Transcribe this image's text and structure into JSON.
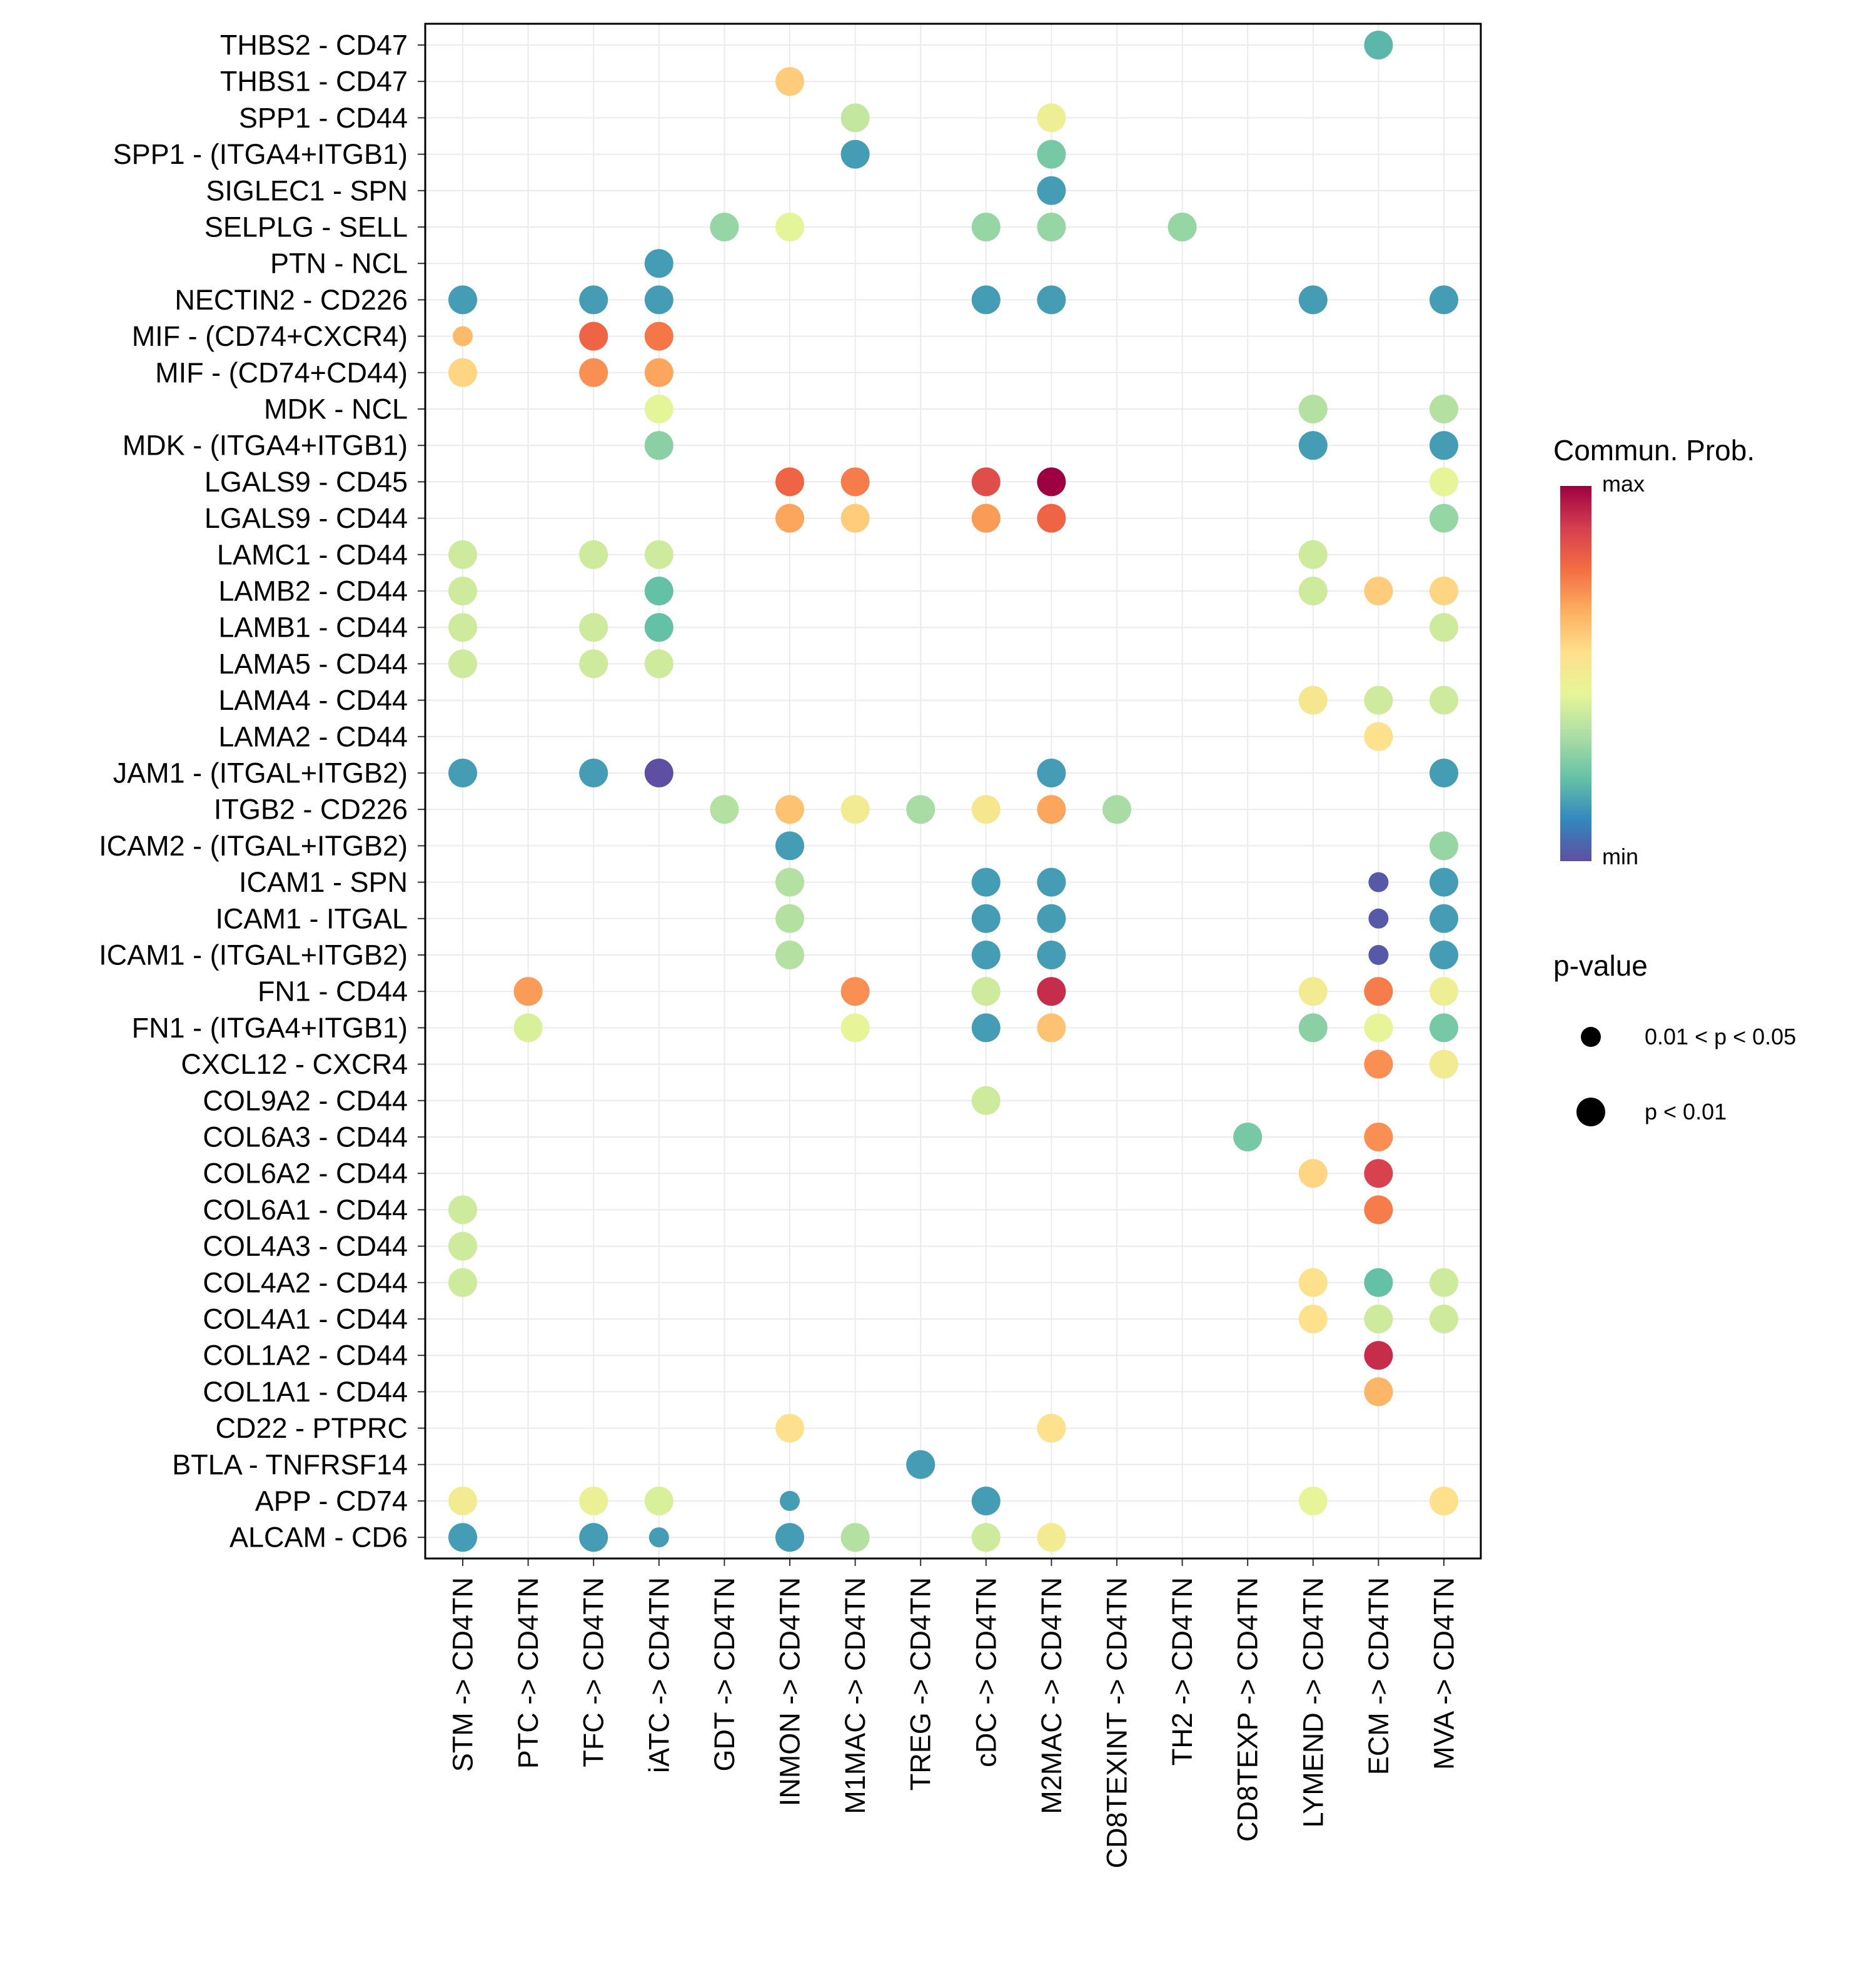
{
  "chart_data": {
    "type": "scatter",
    "subtype": "bubble-dotplot",
    "title": "",
    "xlabel": "",
    "ylabel": "",
    "grid": true,
    "legend_position": "right",
    "x_categories": [
      "STM -> CD4TN",
      "PTC -> CD4TN",
      "TFC -> CD4TN",
      "iATC -> CD4TN",
      "GDT -> CD4TN",
      "INMON -> CD4TN",
      "M1MAC -> CD4TN",
      "TREG -> CD4TN",
      "cDC -> CD4TN",
      "M2MAC -> CD4TN",
      "CD8TEXINT -> CD4TN",
      "TH2 -> CD4TN",
      "CD8TEXP -> CD4TN",
      "LYMEND -> CD4TN",
      "ECM -> CD4TN",
      "MVA -> CD4TN"
    ],
    "y_categories": [
      "THBS2 - CD47",
      "THBS1 - CD47",
      "SPP1 - CD44",
      "SPP1 - (ITGA4+ITGB1)",
      "SIGLEC1 - SPN",
      "SELPLG - SELL",
      "PTN - NCL",
      "NECTIN2 - CD226",
      "MIF - (CD74+CXCR4)",
      "MIF - (CD74+CD44)",
      "MDK - NCL",
      "MDK - (ITGA4+ITGB1)",
      "LGALS9 - CD45",
      "LGALS9 - CD44",
      "LAMC1 - CD44",
      "LAMB2 - CD44",
      "LAMB1 - CD44",
      "LAMA5 - CD44",
      "LAMA4 - CD44",
      "LAMA2 - CD44",
      "JAM1 - (ITGAL+ITGB2)",
      "ITGB2 - CD226",
      "ICAM2 - (ITGAL+ITGB2)",
      "ICAM1 - SPN",
      "ICAM1 - ITGAL",
      "ICAM1 - (ITGAL+ITGB2)",
      "FN1 - CD44",
      "FN1 - (ITGA4+ITGB1)",
      "CXCL12 - CXCR4",
      "COL9A2 - CD44",
      "COL6A3 - CD44",
      "COL6A2 - CD44",
      "COL6A1 - CD44",
      "COL4A3 - CD44",
      "COL4A2 - CD44",
      "COL4A1 - CD44",
      "COL1A2 - CD44",
      "COL1A1 - CD44",
      "CD22 - PTPRC",
      "BTLA - TNFRSF14",
      "APP - CD74",
      "ALCAM - CD6"
    ],
    "point_format": [
      "y_category_index",
      "x_category_index",
      "commun_prob_scaled_0_to_1",
      "p_lt_0.01 (1) or 0.01<p<0.05 (0)"
    ],
    "points": [
      [
        0,
        14,
        0.2,
        1
      ],
      [
        1,
        5,
        0.6,
        1
      ],
      [
        2,
        6,
        0.38,
        1
      ],
      [
        2,
        9,
        0.48,
        1
      ],
      [
        3,
        6,
        0.15,
        1
      ],
      [
        3,
        9,
        0.25,
        1
      ],
      [
        4,
        9,
        0.15,
        1
      ],
      [
        5,
        4,
        0.3,
        1
      ],
      [
        5,
        5,
        0.44,
        1
      ],
      [
        5,
        8,
        0.3,
        1
      ],
      [
        5,
        9,
        0.3,
        1
      ],
      [
        5,
        11,
        0.3,
        1
      ],
      [
        6,
        3,
        0.15,
        1
      ],
      [
        7,
        0,
        0.15,
        1
      ],
      [
        7,
        2,
        0.15,
        1
      ],
      [
        7,
        3,
        0.15,
        1
      ],
      [
        7,
        8,
        0.15,
        1
      ],
      [
        7,
        9,
        0.15,
        1
      ],
      [
        7,
        13,
        0.15,
        1
      ],
      [
        7,
        15,
        0.15,
        1
      ],
      [
        8,
        0,
        0.64,
        0
      ],
      [
        8,
        2,
        0.8,
        1
      ],
      [
        8,
        3,
        0.76,
        1
      ],
      [
        9,
        0,
        0.58,
        1
      ],
      [
        9,
        2,
        0.72,
        1
      ],
      [
        9,
        3,
        0.68,
        1
      ],
      [
        10,
        3,
        0.44,
        1
      ],
      [
        10,
        13,
        0.35,
        1
      ],
      [
        10,
        15,
        0.35,
        1
      ],
      [
        11,
        3,
        0.28,
        1
      ],
      [
        11,
        13,
        0.15,
        1
      ],
      [
        11,
        15,
        0.15,
        1
      ],
      [
        12,
        5,
        0.8,
        1
      ],
      [
        12,
        6,
        0.75,
        1
      ],
      [
        12,
        8,
        0.85,
        1
      ],
      [
        12,
        9,
        1.0,
        1
      ],
      [
        12,
        15,
        0.45,
        1
      ],
      [
        13,
        5,
        0.68,
        1
      ],
      [
        13,
        6,
        0.6,
        1
      ],
      [
        13,
        8,
        0.7,
        1
      ],
      [
        13,
        9,
        0.8,
        1
      ],
      [
        13,
        15,
        0.3,
        1
      ],
      [
        14,
        0,
        0.4,
        1
      ],
      [
        14,
        2,
        0.4,
        1
      ],
      [
        14,
        3,
        0.4,
        1
      ],
      [
        14,
        13,
        0.4,
        1
      ],
      [
        15,
        0,
        0.4,
        1
      ],
      [
        15,
        3,
        0.22,
        1
      ],
      [
        15,
        13,
        0.4,
        1
      ],
      [
        15,
        14,
        0.6,
        1
      ],
      [
        15,
        15,
        0.58,
        1
      ],
      [
        16,
        0,
        0.4,
        1
      ],
      [
        16,
        2,
        0.4,
        1
      ],
      [
        16,
        3,
        0.22,
        1
      ],
      [
        16,
        15,
        0.4,
        1
      ],
      [
        17,
        0,
        0.4,
        1
      ],
      [
        17,
        2,
        0.4,
        1
      ],
      [
        17,
        3,
        0.4,
        1
      ],
      [
        18,
        13,
        0.52,
        1
      ],
      [
        18,
        14,
        0.4,
        1
      ],
      [
        18,
        15,
        0.4,
        1
      ],
      [
        19,
        14,
        0.55,
        1
      ],
      [
        20,
        0,
        0.15,
        1
      ],
      [
        20,
        2,
        0.15,
        1
      ],
      [
        20,
        3,
        0.0,
        1
      ],
      [
        20,
        9,
        0.15,
        1
      ],
      [
        20,
        15,
        0.15,
        1
      ],
      [
        21,
        4,
        0.35,
        1
      ],
      [
        21,
        5,
        0.62,
        1
      ],
      [
        21,
        6,
        0.5,
        1
      ],
      [
        21,
        7,
        0.33,
        1
      ],
      [
        21,
        8,
        0.52,
        1
      ],
      [
        21,
        9,
        0.68,
        1
      ],
      [
        21,
        10,
        0.33,
        1
      ],
      [
        22,
        5,
        0.15,
        1
      ],
      [
        22,
        15,
        0.3,
        1
      ],
      [
        23,
        5,
        0.35,
        1
      ],
      [
        23,
        8,
        0.15,
        1
      ],
      [
        23,
        9,
        0.15,
        1
      ],
      [
        23,
        14,
        0.02,
        0
      ],
      [
        23,
        15,
        0.15,
        1
      ],
      [
        24,
        5,
        0.35,
        1
      ],
      [
        24,
        8,
        0.15,
        1
      ],
      [
        24,
        9,
        0.15,
        1
      ],
      [
        24,
        14,
        0.02,
        0
      ],
      [
        24,
        15,
        0.15,
        1
      ],
      [
        25,
        5,
        0.35,
        1
      ],
      [
        25,
        8,
        0.15,
        1
      ],
      [
        25,
        9,
        0.15,
        1
      ],
      [
        25,
        14,
        0.02,
        0
      ],
      [
        25,
        15,
        0.15,
        1
      ],
      [
        26,
        1,
        0.7,
        1
      ],
      [
        26,
        6,
        0.72,
        1
      ],
      [
        26,
        8,
        0.4,
        1
      ],
      [
        26,
        9,
        0.92,
        1
      ],
      [
        26,
        13,
        0.5,
        1
      ],
      [
        26,
        14,
        0.75,
        1
      ],
      [
        26,
        15,
        0.48,
        1
      ],
      [
        27,
        1,
        0.42,
        1
      ],
      [
        27,
        6,
        0.45,
        1
      ],
      [
        27,
        8,
        0.15,
        1
      ],
      [
        27,
        9,
        0.62,
        1
      ],
      [
        27,
        13,
        0.28,
        1
      ],
      [
        27,
        14,
        0.45,
        1
      ],
      [
        27,
        15,
        0.25,
        1
      ],
      [
        28,
        14,
        0.72,
        1
      ],
      [
        28,
        15,
        0.5,
        1
      ],
      [
        29,
        8,
        0.4,
        1
      ],
      [
        30,
        12,
        0.25,
        1
      ],
      [
        30,
        14,
        0.72,
        1
      ],
      [
        31,
        13,
        0.58,
        1
      ],
      [
        31,
        14,
        0.88,
        1
      ],
      [
        32,
        0,
        0.4,
        1
      ],
      [
        32,
        14,
        0.75,
        1
      ],
      [
        33,
        0,
        0.4,
        1
      ],
      [
        34,
        0,
        0.4,
        1
      ],
      [
        34,
        13,
        0.55,
        1
      ],
      [
        34,
        14,
        0.22,
        1
      ],
      [
        34,
        15,
        0.4,
        1
      ],
      [
        35,
        13,
        0.55,
        1
      ],
      [
        35,
        14,
        0.4,
        1
      ],
      [
        35,
        15,
        0.4,
        1
      ],
      [
        36,
        14,
        0.92,
        1
      ],
      [
        37,
        14,
        0.65,
        1
      ],
      [
        38,
        5,
        0.55,
        1
      ],
      [
        38,
        9,
        0.55,
        1
      ],
      [
        39,
        7,
        0.15,
        1
      ],
      [
        40,
        0,
        0.5,
        1
      ],
      [
        40,
        2,
        0.47,
        1
      ],
      [
        40,
        3,
        0.42,
        1
      ],
      [
        40,
        5,
        0.15,
        0
      ],
      [
        40,
        8,
        0.15,
        1
      ],
      [
        40,
        13,
        0.45,
        1
      ],
      [
        40,
        15,
        0.55,
        1
      ],
      [
        41,
        0,
        0.15,
        1
      ],
      [
        41,
        2,
        0.15,
        1
      ],
      [
        41,
        3,
        0.15,
        0
      ],
      [
        41,
        5,
        0.15,
        1
      ],
      [
        41,
        6,
        0.35,
        1
      ],
      [
        41,
        8,
        0.4,
        1
      ],
      [
        41,
        9,
        0.5,
        1
      ]
    ],
    "color_legend": {
      "title": "Commun. Prob.",
      "max_label": "max",
      "min_label": "min",
      "palette": [
        "#5E4FA2",
        "#3288BD",
        "#66C2A5",
        "#ABDDA4",
        "#E6F598",
        "#FEE08B",
        "#FDAE61",
        "#F46D43",
        "#D53E4F",
        "#9E0142"
      ]
    },
    "size_legend": {
      "title": "p-value",
      "entries": [
        "0.01 < p < 0.05",
        "p < 0.01"
      ]
    }
  }
}
